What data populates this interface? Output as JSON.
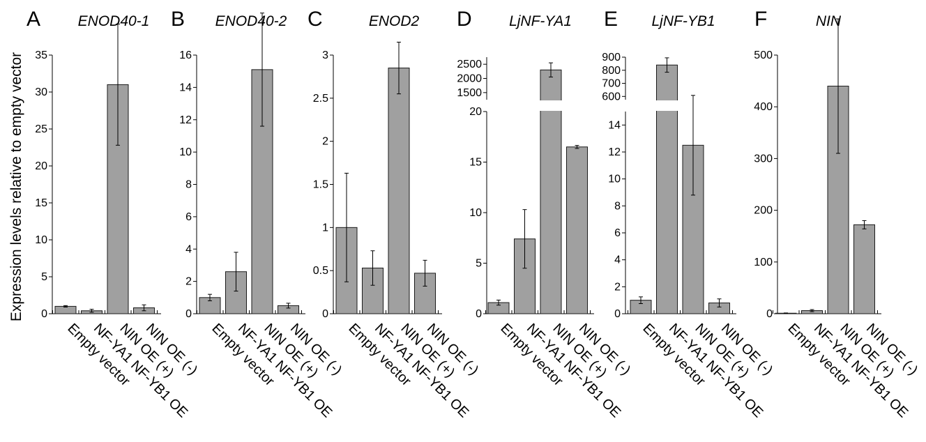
{
  "ylabel": "Expression levels relative to empty vector",
  "chart_data": [
    {
      "letter": "A",
      "title": "ENOD40-1",
      "type": "bar",
      "categories": [
        "Empty vector",
        "NF-YA1 NF-YB1 OE",
        "NIN OE (+)",
        "NIN OE (-)"
      ],
      "values": [
        1.0,
        0.4,
        31.0,
        0.8
      ],
      "errors": [
        0.1,
        0.2,
        8.2,
        0.4
      ],
      "ylim": [
        0,
        35
      ],
      "ticks": [
        0,
        5,
        10,
        15,
        20,
        25,
        30,
        35
      ],
      "tick_labels": [
        "0",
        "5",
        "10",
        "15",
        "20",
        "25",
        "30",
        "35"
      ]
    },
    {
      "letter": "B",
      "title": "ENOD40-2",
      "type": "bar",
      "categories": [
        "Empty vector",
        "NF-YA1 NF-YB1 OE",
        "NIN OE (+)",
        "NIN OE (-)"
      ],
      "values": [
        1.0,
        2.6,
        15.1,
        0.5
      ],
      "errors": [
        0.2,
        1.2,
        3.5,
        0.15
      ],
      "ylim": [
        0,
        16
      ],
      "ticks": [
        0,
        2,
        4,
        6,
        8,
        10,
        12,
        14,
        16
      ],
      "tick_labels": [
        "0",
        "2",
        "4",
        "6",
        "8",
        "10",
        "12",
        "14",
        "16"
      ]
    },
    {
      "letter": "C",
      "title": "ENOD2",
      "type": "bar",
      "categories": [
        "Empty vector",
        "NF-YA1 NF-YB1 OE",
        "NIN OE (+)",
        "NIN OE (-)"
      ],
      "values": [
        1.0,
        0.53,
        2.85,
        0.47
      ],
      "errors": [
        0.63,
        0.2,
        0.3,
        0.15
      ],
      "ylim": [
        0,
        3
      ],
      "ticks": [
        0,
        0.5,
        1,
        1.5,
        2,
        2.5,
        3
      ],
      "tick_labels": [
        "0",
        "0.5",
        "1",
        "1.5",
        "2",
        "2.5",
        "3"
      ]
    },
    {
      "letter": "D",
      "title": "LjNF-YA1",
      "type": "bar",
      "broken_axis": true,
      "categories": [
        "Empty vector",
        "NF-YA1 NF-YB1 OE",
        "NIN OE (+)",
        "NIN OE (-)"
      ],
      "values": [
        1.1,
        7.4,
        2300,
        16.5
      ],
      "errors": [
        0.25,
        2.9,
        250,
        0.15
      ],
      "ylim_lower": [
        0,
        20
      ],
      "ticks_lower": [
        0,
        5,
        10,
        15,
        20
      ],
      "tick_labels_lower": [
        "0",
        "5",
        "10",
        "15",
        "20"
      ],
      "ylim_upper": [
        1250,
        2750
      ],
      "ticks_upper": [
        1500,
        2000,
        2500
      ],
      "tick_labels_upper": [
        "1500",
        "2000",
        "2500"
      ]
    },
    {
      "letter": "E",
      "title": "LjNF-YB1",
      "type": "bar",
      "broken_axis": true,
      "categories": [
        "Empty vector",
        "NF-YA1 NF-YB1 OE",
        "NIN OE (+)",
        "NIN OE (-)"
      ],
      "values": [
        1.0,
        840,
        12.5,
        0.8
      ],
      "errors": [
        0.25,
        55,
        3.7,
        0.3
      ],
      "ylim_lower": [
        0,
        15
      ],
      "ticks_lower": [
        0,
        2,
        4,
        6,
        8,
        10,
        12,
        14
      ],
      "tick_labels_lower": [
        "0",
        "2",
        "4",
        "6",
        "8",
        "10",
        "12",
        "14"
      ],
      "ylim_upper": [
        575,
        900
      ],
      "ticks_upper": [
        600,
        700,
        800,
        900
      ],
      "tick_labels_upper": [
        "600",
        "700",
        "800",
        "900"
      ]
    },
    {
      "letter": "F",
      "title": "NIN",
      "type": "bar",
      "categories": [
        "Empty vector",
        "NF-YA1 NF-YB1 OE",
        "NIN OE (+)",
        "NIN OE (-)"
      ],
      "values": [
        1.0,
        6.0,
        440,
        172
      ],
      "errors": [
        0.5,
        2.0,
        130,
        8.0
      ],
      "ylim": [
        0,
        500
      ],
      "ticks": [
        0,
        100,
        200,
        300,
        400,
        500
      ],
      "tick_labels": [
        "0",
        "100",
        "200",
        "300",
        "400",
        "500"
      ]
    }
  ]
}
